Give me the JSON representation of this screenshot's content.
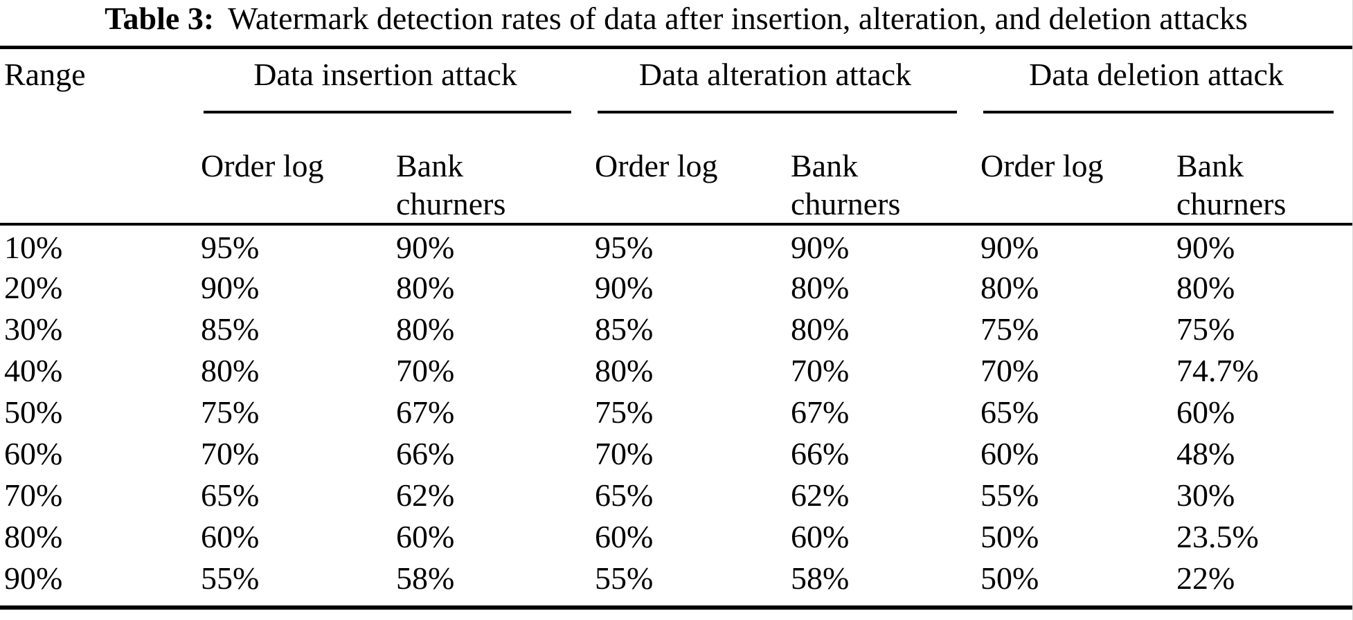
{
  "title": {
    "label": "Table 3:",
    "text": "Watermark detection rates of data after insertion, alteration, and deletion attacks"
  },
  "colors": {
    "text": "#000000",
    "background": "#ffffff",
    "rule": "#000000"
  },
  "table": {
    "range_header": "Range",
    "groups": [
      {
        "label": "Data insertion attack"
      },
      {
        "label": "Data alteration attack"
      },
      {
        "label": "Data deletion attack"
      }
    ],
    "sub_headers": {
      "order_log": "Order log",
      "bank_churners": "Bank churners"
    },
    "rows": [
      [
        "10%",
        "95%",
        "90%",
        "95%",
        "90%",
        "90%",
        "90%"
      ],
      [
        "20%",
        "90%",
        "80%",
        "90%",
        "80%",
        "80%",
        "80%"
      ],
      [
        "30%",
        "85%",
        "80%",
        "85%",
        "80%",
        "75%",
        "75%"
      ],
      [
        "40%",
        "80%",
        "70%",
        "80%",
        "70%",
        "70%",
        "74.7%"
      ],
      [
        "50%",
        "75%",
        "67%",
        "75%",
        "67%",
        "65%",
        "60%"
      ],
      [
        "60%",
        "70%",
        "66%",
        "70%",
        "66%",
        "60%",
        "48%"
      ],
      [
        "70%",
        "65%",
        "62%",
        "65%",
        "62%",
        "55%",
        "30%"
      ],
      [
        "80%",
        "60%",
        "60%",
        "60%",
        "60%",
        "50%",
        "23.5%"
      ],
      [
        "90%",
        "55%",
        "58%",
        "55%",
        "58%",
        "50%",
        "22%"
      ]
    ]
  }
}
